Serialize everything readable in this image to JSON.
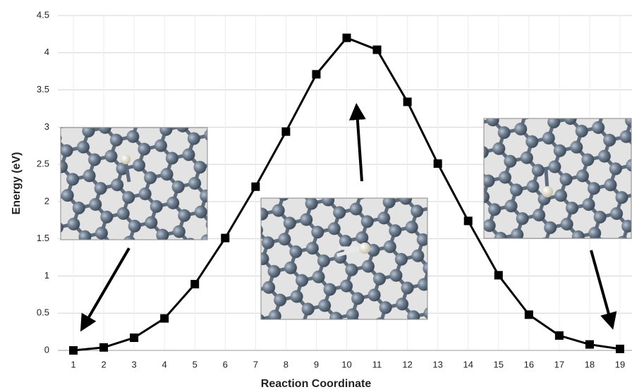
{
  "chart_data": {
    "type": "line",
    "x_label": "Reaction Coordinate",
    "y_label": "Energy (eV)",
    "categories": [
      "1",
      "2",
      "3",
      "4",
      "5",
      "6",
      "7",
      "8",
      "9",
      "10",
      "11",
      "12",
      "13",
      "14",
      "15",
      "16",
      "17",
      "18",
      "19"
    ],
    "values": [
      0.0,
      0.04,
      0.17,
      0.43,
      0.89,
      1.51,
      2.2,
      2.94,
      3.71,
      4.2,
      4.04,
      3.34,
      2.51,
      1.74,
      1.01,
      0.48,
      0.2,
      0.08,
      0.02
    ],
    "color": "#000000",
    "ylim": [
      0,
      4.5
    ],
    "yticks": [
      0,
      0.5,
      1,
      1.5,
      2,
      2.5,
      3,
      3.5,
      4,
      4.5
    ],
    "grid": true
  }
}
